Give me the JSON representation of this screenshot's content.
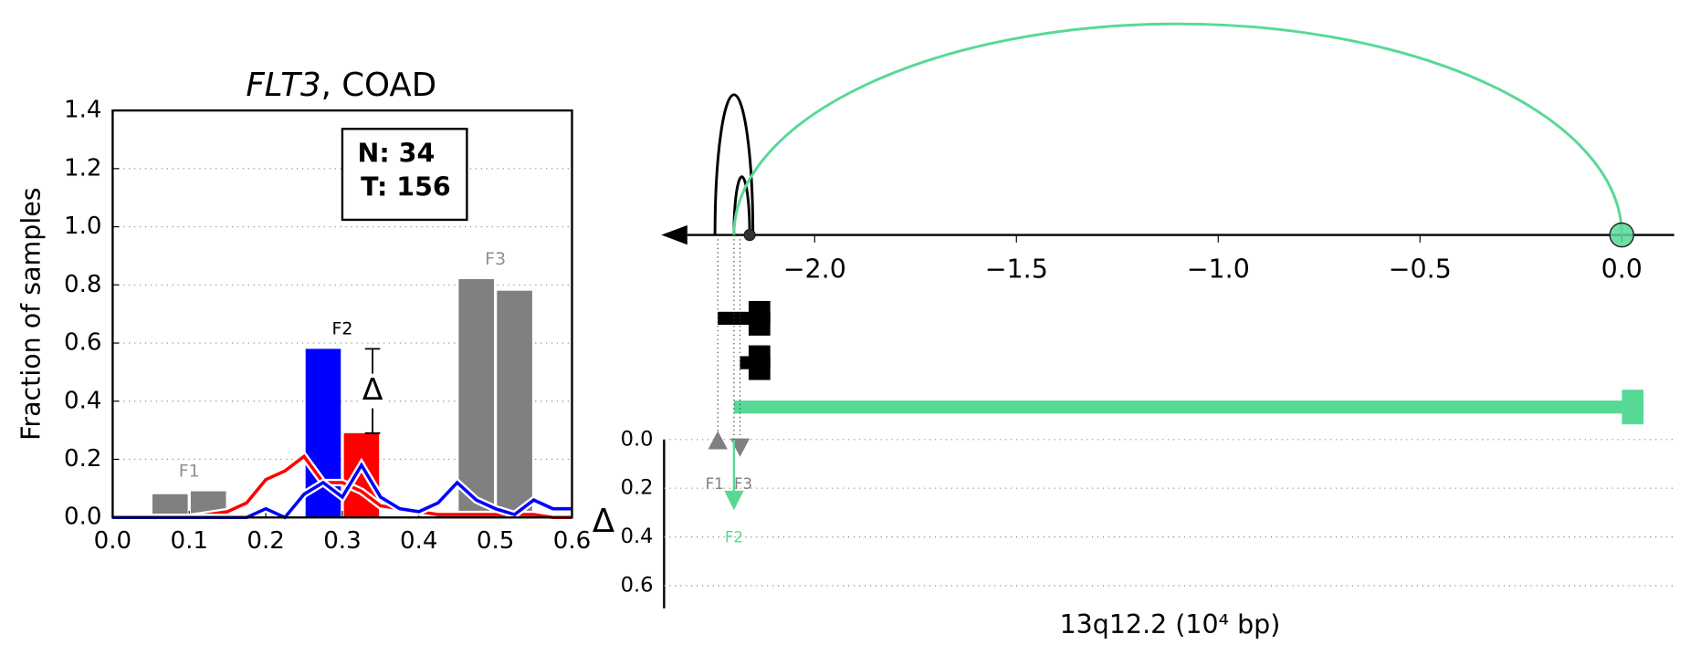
{
  "chart_data": [
    {
      "type": "bar_line",
      "title": [
        "FLT3",
        ", COAD"
      ],
      "ylabel": "Fraction of samples",
      "xlim": [
        0,
        0.6
      ],
      "xticks": [
        {
          "value": 0,
          "label": "0.0"
        },
        {
          "value": 0.1,
          "label": "0.1"
        },
        {
          "value": 0.2,
          "label": "0.2"
        },
        {
          "value": 0.3,
          "label": "0.3"
        },
        {
          "value": 0.4,
          "label": "0.4"
        },
        {
          "value": 0.5,
          "label": "0.5"
        },
        {
          "value": 0.6,
          "label": "0.6"
        }
      ],
      "ylim": [
        0,
        1.4
      ],
      "yticks": [
        {
          "value": 0,
          "label": "0.0"
        },
        {
          "value": 0.2,
          "label": "0.2"
        },
        {
          "value": 0.4,
          "label": "0.4"
        },
        {
          "value": 0.6,
          "label": "0.6"
        },
        {
          "value": 0.8,
          "label": "0.8"
        },
        {
          "value": 1,
          "label": "1.0"
        },
        {
          "value": 1.2,
          "label": "1.2"
        },
        {
          "value": 1.4,
          "label": "1.4"
        }
      ],
      "grid": true,
      "bars": {
        "x": [
          0.075,
          0.125,
          0.275,
          0.325,
          0.475,
          0.525
        ],
        "values": [
          0.08,
          0.09,
          0.58,
          0.29,
          0.82,
          0.78
        ],
        "colors": [
          "#808080",
          "#808080",
          "#0000ff",
          "#ff0000",
          "#808080",
          "#808080"
        ]
      },
      "groups": [
        {
          "label": "F1",
          "bars": [
            0,
            1
          ],
          "color": "#909090"
        },
        {
          "label": "F2",
          "bars": [
            2,
            3
          ],
          "color": "#000000"
        },
        {
          "label": "F3",
          "bars": [
            4,
            5
          ],
          "color": "#909090"
        }
      ],
      "delta": {
        "label": "Δ",
        "bars": [
          2,
          3
        ]
      },
      "box": [
        "N: 34",
        "T: 156"
      ],
      "x": [
        0,
        0.025,
        0.05,
        0.075,
        0.1,
        0.125,
        0.15,
        0.175,
        0.2,
        0.225,
        0.25,
        0.275,
        0.3,
        0.325,
        0.35,
        0.375,
        0.4,
        0.425,
        0.45,
        0.475,
        0.5,
        0.525,
        0.55,
        0.575,
        0.6
      ],
      "series": [
        {
          "color": "#ff0000",
          "values": [
            0,
            0,
            0,
            0,
            0,
            0.01,
            0.02,
            0.05,
            0.13,
            0.16,
            0.21,
            0.12,
            0.12,
            0.09,
            0.04,
            0.03,
            0.02,
            0.01,
            0.01,
            0.01,
            0.01,
            0.01,
            0.01,
            0,
            0
          ]
        },
        {
          "color": "#0000ff",
          "values": [
            0,
            0,
            0,
            0,
            0,
            0,
            0,
            0,
            0.03,
            0,
            0.08,
            0.12,
            0.07,
            0.18,
            0.07,
            0.03,
            0.02,
            0.05,
            0.12,
            0.06,
            0.03,
            0.01,
            0.06,
            0.03,
            0.03
          ]
        }
      ]
    },
    {
      "type": "genome",
      "xlabel": "13q12.2 (10⁴ bp)",
      "xlim": [
        -2.38,
        0.13
      ],
      "xticks": [
        {
          "value": -2,
          "label": "−2.0"
        },
        {
          "value": -1.5,
          "label": "−1.5"
        },
        {
          "value": -1,
          "label": "−1.0"
        },
        {
          "value": -0.5,
          "label": "−0.5"
        },
        {
          "value": 0,
          "label": "0.0"
        }
      ],
      "arcs": [
        {
          "start": -2.247,
          "end": -2.153,
          "color": "#000000"
        },
        {
          "start": -2.2,
          "end": -2.161,
          "color": "#000000"
        },
        {
          "start": -2.2,
          "end": 0,
          "color": "#57d996"
        }
      ],
      "points": [
        {
          "x": -2.161,
          "color": "#333333"
        },
        {
          "x": 0,
          "color": "#57d996"
        }
      ],
      "tracks": [
        {
          "start": -2.24,
          "end": -2.11,
          "color": "#000000"
        },
        {
          "start": -2.185,
          "end": -2.11,
          "color": "#000000"
        },
        {
          "start": -2.2,
          "end": 0.054,
          "color": "#57d996"
        }
      ],
      "ylabel": "Δ",
      "ylim": [
        0,
        0.7
      ],
      "yticks": [
        {
          "value": 0,
          "label": "0.0"
        },
        {
          "value": 0.2,
          "label": "0.2"
        },
        {
          "value": 0.4,
          "label": "0.4"
        },
        {
          "value": 0.6,
          "label": "0.6"
        }
      ],
      "grid": true,
      "markers": [
        {
          "label": "F1",
          "x": -2.24,
          "value": 0,
          "shape": "up",
          "color": "#808080"
        },
        {
          "label": "F3",
          "x": -2.185,
          "value": 0,
          "shape": "down",
          "color": "#808080"
        },
        {
          "label": "F2",
          "x": -2.2,
          "value": 0.29,
          "shape": "arrow",
          "color": "#57d996"
        }
      ]
    }
  ]
}
